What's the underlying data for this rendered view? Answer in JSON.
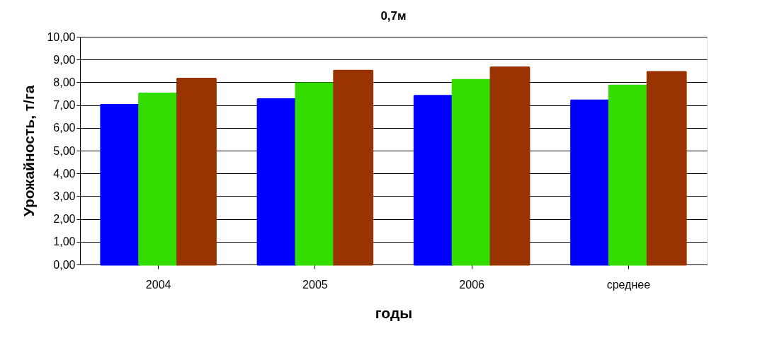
{
  "chart_data": {
    "type": "bar",
    "title": "0,7м",
    "xlabel": "годы",
    "ylabel": "Урожайность, т/га",
    "categories": [
      "2004",
      "2005",
      "2006",
      "среднее"
    ],
    "series": [
      {
        "color": "#0000ff",
        "values": [
          7.0,
          7.25,
          7.4,
          7.2
        ]
      },
      {
        "color": "#33dd00",
        "values": [
          7.5,
          7.95,
          8.1,
          7.85
        ]
      },
      {
        "color": "#993300",
        "values": [
          8.15,
          8.5,
          8.65,
          8.45
        ]
      }
    ],
    "ylim": [
      0,
      10
    ],
    "yticks": [
      {
        "value": 0,
        "label": "0,00"
      },
      {
        "value": 1,
        "label": "1,00"
      },
      {
        "value": 2,
        "label": "2,00"
      },
      {
        "value": 3,
        "label": "3,00"
      },
      {
        "value": 4,
        "label": "4,00"
      },
      {
        "value": 5,
        "label": "5,00"
      },
      {
        "value": 6,
        "label": "6,00"
      },
      {
        "value": 7,
        "label": "7,00"
      },
      {
        "value": 8,
        "label": "8,00"
      },
      {
        "value": 9,
        "label": "9,00"
      },
      {
        "value": 10,
        "label": "10,00"
      }
    ],
    "grid": "y",
    "legend": false
  }
}
